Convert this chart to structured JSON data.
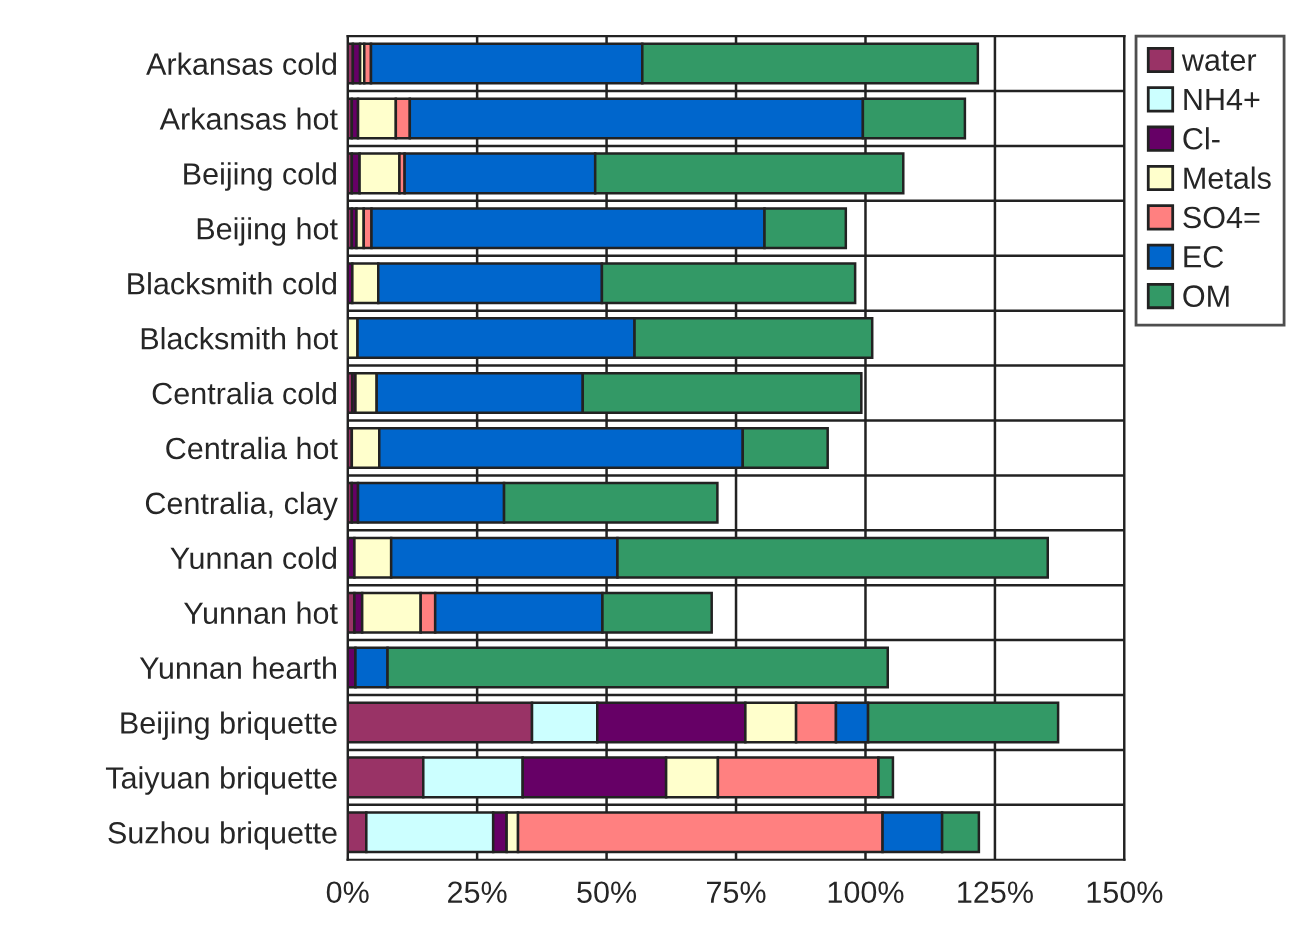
{
  "chart_data": {
    "type": "bar",
    "orientation": "horizontal",
    "stacked": true,
    "categories": [
      "Arkansas cold",
      "Arkansas hot",
      "Beijing cold",
      "Beijing hot",
      "Blacksmith cold",
      "Blacksmith hot",
      "Centralia cold",
      "Centralia hot",
      "Centralia, clay",
      "Yunnan cold",
      "Yunnan hot",
      "Yunnan hearth",
      "Beijing briquette",
      "Taiyuan briquette",
      "Suzhou briquette"
    ],
    "series": [
      {
        "name": "water",
        "color": "#993366",
        "values": [
          1.0,
          0.8,
          0.8,
          0.8,
          0,
          0,
          0.9,
          0.8,
          0.8,
          0,
          1.3,
          0,
          35.6,
          14.6,
          3.6
        ]
      },
      {
        "name": "NH4+",
        "color": "#ccffff",
        "values": [
          null,
          0,
          0,
          0,
          0,
          0,
          0,
          0,
          0,
          0,
          0,
          0,
          12.6,
          19.2,
          24.5
        ]
      },
      {
        "name": "Cl-",
        "color": "#660066",
        "values": [
          1.4,
          1.2,
          1.5,
          0.9,
          0.9,
          null,
          0.6,
          null,
          1.2,
          1.3,
          1.5,
          1.5,
          28.6,
          27.7,
          2.6
        ]
      },
      {
        "name": "Metals",
        "color": "#ffffcc",
        "values": [
          0.8,
          7.3,
          7.7,
          1.4,
          5.0,
          1.9,
          4.1,
          5.3,
          0,
          7.1,
          11.3,
          0,
          9.8,
          10.0,
          2.2
        ]
      },
      {
        "name": "SO4=",
        "color": "#ff8080",
        "values": [
          1.3,
          2.7,
          1.0,
          1.5,
          0,
          0,
          0,
          0,
          0,
          0,
          2.8,
          0,
          7.7,
          31.0,
          70.4
        ]
      },
      {
        "name": "EC",
        "color": "#0066cc",
        "values": [
          52.4,
          87.5,
          36.8,
          75.9,
          43.2,
          53.5,
          39.8,
          70.2,
          28.2,
          43.7,
          32.3,
          6.2,
          6.2,
          0,
          11.5
        ]
      },
      {
        "name": "OM",
        "color": "#339966",
        "values": [
          64.8,
          19.7,
          59.5,
          15.7,
          48.9,
          45.9,
          53.8,
          16.4,
          41.2,
          83.1,
          21.1,
          96.6,
          36.7,
          2.8,
          7.1
        ]
      }
    ],
    "xlim": [
      0,
      150
    ],
    "xticks": [
      {
        "value": 0,
        "label": "0%"
      },
      {
        "value": 25,
        "label": "25%"
      },
      {
        "value": 50,
        "label": "50%"
      },
      {
        "value": 75,
        "label": "75%"
      },
      {
        "value": 100,
        "label": "100%"
      },
      {
        "value": 125,
        "label": "125%"
      },
      {
        "value": 150,
        "label": "150%"
      }
    ],
    "grid": true,
    "legend": "right"
  }
}
